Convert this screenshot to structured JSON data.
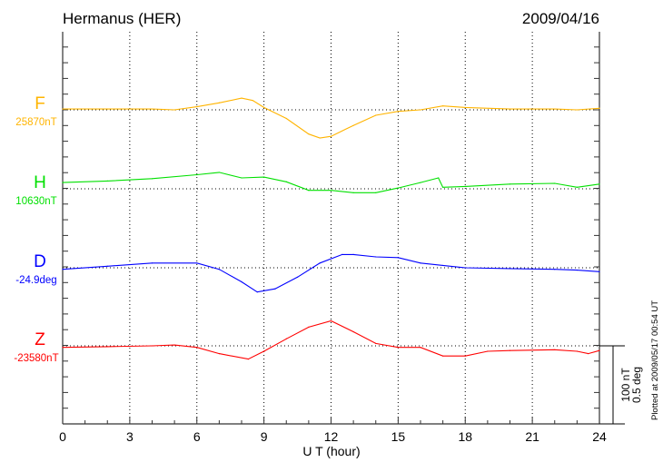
{
  "chart_data": {
    "type": "line",
    "title": "Hermanus (HER)",
    "date": "2009/04/16",
    "xlabel": "U T (hour)",
    "xlim": [
      0,
      24
    ],
    "xticks": [
      "0",
      "3",
      "6",
      "9",
      "12",
      "15",
      "18",
      "21",
      "24"
    ],
    "grid": true,
    "scale_bar": {
      "label_nT": "100 nT",
      "label_deg": "0.5 deg",
      "nT": 100,
      "deg": 0.5
    },
    "footnote": "Plotted at 2009/05/17 00:54 UT",
    "series": [
      {
        "name": "F",
        "baseline_label": "25870nT",
        "unit": "nT",
        "color": "#ffb400",
        "x": [
          0,
          2,
          4,
          5,
          6,
          7,
          8,
          8.5,
          9,
          10,
          11,
          11.5,
          12,
          13,
          14,
          15,
          16,
          17,
          18,
          20,
          22,
          23,
          24
        ],
        "y": [
          1,
          1,
          1,
          0,
          4,
          9,
          15,
          12,
          3,
          -11,
          -31,
          -36,
          -34,
          -20,
          -7,
          -2,
          0,
          5,
          3,
          1,
          1,
          0,
          2
        ]
      },
      {
        "name": "H",
        "baseline_label": "10630nT",
        "unit": "nT",
        "color": "#00e000",
        "x": [
          0,
          2,
          4,
          6,
          7,
          8,
          9,
          10,
          11,
          12,
          13,
          14,
          15,
          16,
          16.8,
          17,
          18,
          20,
          22,
          23,
          24
        ],
        "y": [
          8,
          10,
          13,
          18,
          21,
          14,
          15,
          9,
          -2,
          -2,
          -5,
          -5,
          1,
          8,
          14,
          2,
          3,
          6,
          7,
          2,
          6
        ]
      },
      {
        "name": "D",
        "baseline_label": "-24.9deg",
        "unit": "deg",
        "color": "#0000ff",
        "x": [
          0,
          2,
          4,
          6,
          7,
          8,
          8.7,
          9.5,
          10.5,
          11.5,
          12.5,
          13,
          14,
          15,
          16,
          17,
          18,
          20,
          22,
          23,
          24
        ],
        "y": [
          -0.01,
          0.01,
          0.03,
          0.03,
          -0.01,
          -0.09,
          -0.155,
          -0.135,
          -0.06,
          0.03,
          0.085,
          0.085,
          0.07,
          0.065,
          0.03,
          0.015,
          0,
          -0.005,
          -0.01,
          -0.015,
          -0.025
        ]
      },
      {
        "name": "Z",
        "baseline_label": "-23580nT",
        "unit": "nT",
        "color": "#ff0000",
        "x": [
          0,
          2,
          4,
          5,
          6,
          7,
          8.3,
          9,
          10,
          11,
          12,
          13,
          14,
          15,
          16,
          17,
          18,
          19,
          20,
          22,
          23,
          23.5,
          24
        ],
        "y": [
          -2,
          -1,
          0,
          1,
          -2,
          -10,
          -17,
          -7,
          9,
          24,
          32,
          18,
          3,
          -2,
          -2,
          -13,
          -13,
          -7,
          -6,
          -5,
          -7,
          -10,
          -6
        ]
      }
    ]
  }
}
